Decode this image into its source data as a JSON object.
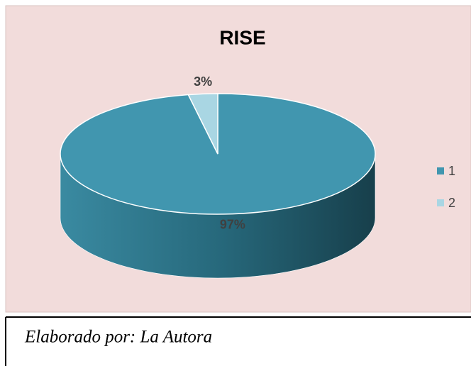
{
  "chart_data": {
    "type": "pie",
    "title": "RISE",
    "categories": [
      "1",
      "2"
    ],
    "values": [
      97,
      3
    ],
    "value_labels": [
      "97%",
      "3%"
    ],
    "colors": [
      "#4196af",
      "#a9d6e3"
    ],
    "legend": "right"
  },
  "caption": "Elaborado por: La Autora"
}
